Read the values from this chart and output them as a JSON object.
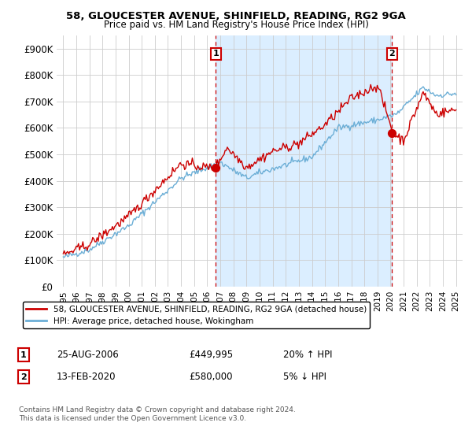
{
  "title": "58, GLOUCESTER AVENUE, SHINFIELD, READING, RG2 9GA",
  "subtitle": "Price paid vs. HM Land Registry's House Price Index (HPI)",
  "ylabel_ticks": [
    "£0",
    "£100K",
    "£200K",
    "£300K",
    "£400K",
    "£500K",
    "£600K",
    "£700K",
    "£800K",
    "£900K"
  ],
  "ytick_values": [
    0,
    100000,
    200000,
    300000,
    400000,
    500000,
    600000,
    700000,
    800000,
    900000
  ],
  "ylim": [
    0,
    950000
  ],
  "sale1_x": 2006.65,
  "sale1_price": 449995,
  "sale1_date_str": "25-AUG-2006",
  "sale1_pct_str": "20% ↑ HPI",
  "sale2_x": 2020.12,
  "sale2_price": 580000,
  "sale2_date_str": "13-FEB-2020",
  "sale2_pct_str": "5% ↓ HPI",
  "hpi_color": "#6baed6",
  "price_color": "#cc0000",
  "vline_color": "#cc0000",
  "fill_color": "#dbeeff",
  "legend_entry1": "58, GLOUCESTER AVENUE, SHINFIELD, READING, RG2 9GA (detached house)",
  "legend_entry2": "HPI: Average price, detached house, Wokingham",
  "footer1": "Contains HM Land Registry data © Crown copyright and database right 2024.",
  "footer2": "This data is licensed under the Open Government Licence v3.0.",
  "xmin": 1994.5,
  "xmax": 2025.5
}
